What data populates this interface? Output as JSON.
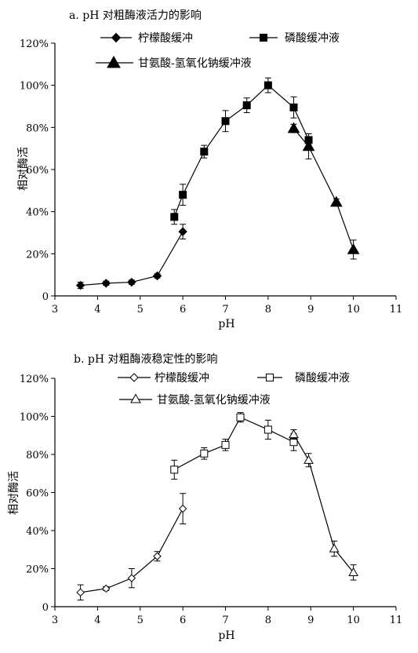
{
  "chart_data": [
    {
      "type": "line",
      "title": "a. pH 对粗酶液活力的影响",
      "xlabel": "pH",
      "ylabel": "相对酶活",
      "xlim": [
        3,
        11
      ],
      "ylim": [
        0,
        120
      ],
      "x_ticks": [
        "3",
        "4",
        "5",
        "6",
        "7",
        "8",
        "9",
        "10",
        "11"
      ],
      "y_ticks": [
        "0",
        "20%",
        "40%",
        "60%",
        "80%",
        "100%",
        "120%"
      ],
      "marker_fill": "filled",
      "legend_position": "top",
      "series": [
        {
          "name": "柠檬酸缓冲",
          "marker": "diamond",
          "points": [
            {
              "x": 3.6,
              "y": 5,
              "err": 1.5
            },
            {
              "x": 4.2,
              "y": 6,
              "err": 1
            },
            {
              "x": 4.8,
              "y": 6.5,
              "err": 1
            },
            {
              "x": 5.4,
              "y": 9.5,
              "err": 1
            },
            {
              "x": 6.0,
              "y": 30.5,
              "err": 3.5
            }
          ]
        },
        {
          "name": "磷酸缓冲液",
          "marker": "square",
          "points": [
            {
              "x": 5.8,
              "y": 37.5,
              "err": 3.5
            },
            {
              "x": 6.0,
              "y": 48,
              "err": 5
            },
            {
              "x": 6.5,
              "y": 68.5,
              "err": 3
            },
            {
              "x": 7.0,
              "y": 83,
              "err": 5
            },
            {
              "x": 7.5,
              "y": 90.5,
              "err": 3.5
            },
            {
              "x": 8.0,
              "y": 100,
              "err": 3.5
            },
            {
              "x": 8.6,
              "y": 89.5,
              "err": 5
            },
            {
              "x": 8.95,
              "y": 74,
              "err": 3
            }
          ]
        },
        {
          "name": "甘氨酸-氢氧化钠缓冲液",
          "marker": "triangle",
          "points": [
            {
              "x": 8.6,
              "y": 79.5,
              "err": 2
            },
            {
              "x": 8.95,
              "y": 71,
              "err": 6
            },
            {
              "x": 9.6,
              "y": 44.5,
              "err": 1.5
            },
            {
              "x": 10.0,
              "y": 22,
              "err": 4.5
            }
          ]
        }
      ]
    },
    {
      "type": "line",
      "title": "b. pH 对粗酶液稳定性的影响",
      "xlabel": "pH",
      "ylabel": "相对酶活",
      "xlim": [
        3,
        11
      ],
      "ylim": [
        0,
        120
      ],
      "x_ticks": [
        "3",
        "4",
        "5",
        "6",
        "7",
        "8",
        "9",
        "10",
        "11"
      ],
      "y_ticks": [
        "0",
        "20%",
        "40%",
        "60%",
        "80%",
        "100%",
        "120%"
      ],
      "marker_fill": "open",
      "legend_position": "top",
      "series": [
        {
          "name": "柠檬酸缓冲",
          "marker": "diamond",
          "points": [
            {
              "x": 3.6,
              "y": 7.5,
              "err": 4
            },
            {
              "x": 4.2,
              "y": 9.5,
              "err": 1
            },
            {
              "x": 4.8,
              "y": 15,
              "err": 5
            },
            {
              "x": 5.4,
              "y": 26.5,
              "err": 2.5
            },
            {
              "x": 6.0,
              "y": 51.5,
              "err": 8
            }
          ]
        },
        {
          "name": "磷酸缓冲液",
          "marker": "square",
          "points": [
            {
              "x": 5.8,
              "y": 72,
              "err": 5
            },
            {
              "x": 6.5,
              "y": 80.5,
              "err": 3
            },
            {
              "x": 7.0,
              "y": 85,
              "err": 3
            },
            {
              "x": 7.35,
              "y": 99.5,
              "err": 2.5
            },
            {
              "x": 8.0,
              "y": 93,
              "err": 5
            },
            {
              "x": 8.6,
              "y": 86.5,
              "err": 4.5
            }
          ]
        },
        {
          "name": "甘氨酸-氢氧化钠缓冲液",
          "marker": "triangle",
          "points": [
            {
              "x": 8.6,
              "y": 90.5,
              "err": 2.5
            },
            {
              "x": 8.95,
              "y": 77,
              "err": 3.5
            },
            {
              "x": 9.55,
              "y": 30.5,
              "err": 4
            },
            {
              "x": 10.0,
              "y": 18,
              "err": 4
            }
          ]
        }
      ]
    }
  ]
}
